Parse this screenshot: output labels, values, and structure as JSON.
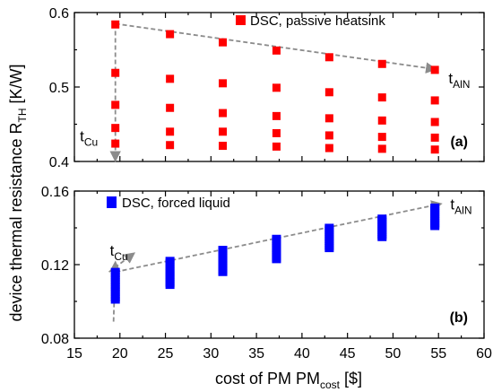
{
  "chart_data": [
    {
      "type": "scatter",
      "panel_label": "(a)",
      "ylabel_main": "device thermal resistance R",
      "ylabel_sub": "TH",
      "ylabel_unit": " [K/W]",
      "ylim": [
        0.4,
        0.6
      ],
      "yticks": [
        0.4,
        0.5,
        0.6
      ],
      "xlim": [
        15,
        60
      ],
      "grid": false,
      "legend_position": "top-right",
      "series": [
        {
          "name": "DSC, passive heatsink",
          "color": "#ff0000",
          "marker": "square",
          "points": [
            [
              19.5,
              0.584
            ],
            [
              19.5,
              0.519
            ],
            [
              19.5,
              0.476
            ],
            [
              19.5,
              0.445
            ],
            [
              19.5,
              0.424
            ],
            [
              25.5,
              0.571
            ],
            [
              25.5,
              0.511
            ],
            [
              25.5,
              0.472
            ],
            [
              25.5,
              0.44
            ],
            [
              25.5,
              0.422
            ],
            [
              31.3,
              0.56
            ],
            [
              31.3,
              0.505
            ],
            [
              31.3,
              0.465
            ],
            [
              31.3,
              0.44
            ],
            [
              31.3,
              0.421
            ],
            [
              37.2,
              0.549
            ],
            [
              37.2,
              0.499
            ],
            [
              37.2,
              0.461
            ],
            [
              37.2,
              0.438
            ],
            [
              37.2,
              0.42
            ],
            [
              43.0,
              0.54
            ],
            [
              43.0,
              0.493
            ],
            [
              43.0,
              0.458
            ],
            [
              43.0,
              0.435
            ],
            [
              43.0,
              0.418
            ],
            [
              48.8,
              0.531
            ],
            [
              48.8,
              0.486
            ],
            [
              48.8,
              0.455
            ],
            [
              48.8,
              0.433
            ],
            [
              48.8,
              0.417
            ],
            [
              54.6,
              0.523
            ],
            [
              54.6,
              0.482
            ],
            [
              54.6,
              0.453
            ],
            [
              54.6,
              0.432
            ],
            [
              54.6,
              0.416
            ]
          ]
        }
      ],
      "arrows": [
        {
          "from": [
            19.5,
            0.585
          ],
          "to": [
            54.6,
            0.524
          ]
        },
        {
          "from": [
            19.5,
            0.585
          ],
          "to": [
            19.5,
            0.402
          ]
        }
      ],
      "annotations": [
        {
          "main": "t",
          "sub": "AlN",
          "at": [
            56.1,
            0.505
          ]
        },
        {
          "main": "t",
          "sub": "Cu",
          "at": [
            15.6,
            0.427
          ]
        }
      ]
    },
    {
      "type": "scatter",
      "panel_label": "(b)",
      "ylim": [
        0.08,
        0.16
      ],
      "yticks": [
        0.08,
        0.12,
        0.16
      ],
      "xlim": [
        15,
        60
      ],
      "xticks": [
        15,
        20,
        25,
        30,
        35,
        40,
        45,
        50,
        55,
        60
      ],
      "xlabel_main": "cost of PM PM",
      "xlabel_sub": "cost",
      "xlabel_unit": " [$]",
      "grid": false,
      "legend_position": "top-left",
      "series": [
        {
          "name": "DSC, forced liquid",
          "color": "#0000ff",
          "marker": "square",
          "clusters": [
            {
              "x": 19.5,
              "y_min": 0.1,
              "y_max": 0.117
            },
            {
              "x": 25.5,
              "y_min": 0.108,
              "y_max": 0.123
            },
            {
              "x": 31.3,
              "y_min": 0.115,
              "y_max": 0.129
            },
            {
              "x": 37.2,
              "y_min": 0.122,
              "y_max": 0.135
            },
            {
              "x": 43.0,
              "y_min": 0.128,
              "y_max": 0.141
            },
            {
              "x": 48.8,
              "y_min": 0.134,
              "y_max": 0.146
            },
            {
              "x": 54.6,
              "y_min": 0.14,
              "y_max": 0.152
            }
          ]
        }
      ],
      "arrows": [
        {
          "from": [
            19.5,
            0.116
          ],
          "to": [
            55.2,
            0.153
          ]
        },
        {
          "from": [
            19.3,
            0.089
          ],
          "to": [
            19.5,
            0.121
          ]
        },
        {
          "from": [
            18.8,
            0.116
          ],
          "to": [
            21.5,
            0.126
          ]
        }
      ],
      "annotations": [
        {
          "main": "t",
          "sub": "AlN",
          "at": [
            56.3,
            0.15
          ]
        },
        {
          "main": "t",
          "sub": "Cu",
          "at": [
            18.9,
            0.125
          ]
        }
      ]
    }
  ]
}
